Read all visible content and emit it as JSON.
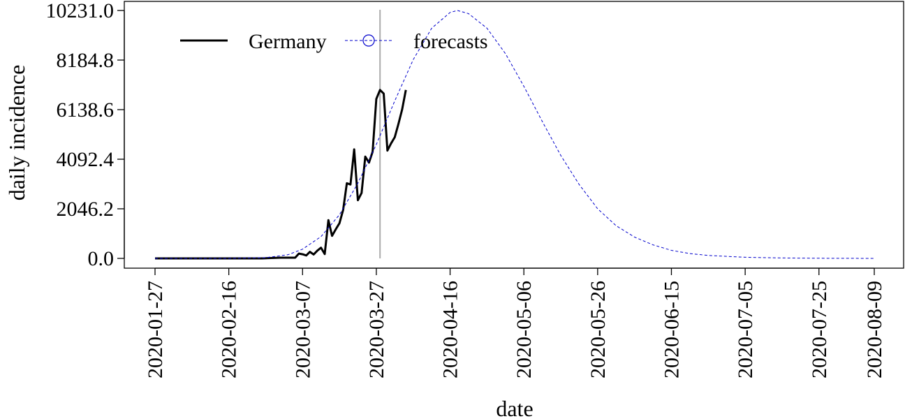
{
  "chart_data": {
    "type": "line",
    "xlabel": "date",
    "ylabel": "daily incidence",
    "x_ticks": [
      "2020-01-27",
      "2020-02-16",
      "2020-03-07",
      "2020-03-27",
      "2020-04-16",
      "2020-05-06",
      "2020-05-26",
      "2020-06-15",
      "2020-07-05",
      "2020-07-25",
      "2020-08-09"
    ],
    "y_ticks": [
      "0.0",
      "2046.2",
      "4092.4",
      "6138.6",
      "8184.8",
      "10231.0"
    ],
    "xlim": [
      "2020-01-27",
      "2020-08-09"
    ],
    "ylim": [
      0,
      10231.0
    ],
    "cutoff_date": "2020-03-28",
    "grid": false,
    "legend_position": "top-left",
    "series": [
      {
        "name": "Germany",
        "style": "solid",
        "color": "#000000",
        "points": [
          [
            "2020-01-27",
            0
          ],
          [
            "2020-02-10",
            0
          ],
          [
            "2020-02-25",
            0
          ],
          [
            "2020-03-01",
            30
          ],
          [
            "2020-03-03",
            30
          ],
          [
            "2020-03-05",
            30
          ],
          [
            "2020-03-06",
            200
          ],
          [
            "2020-03-07",
            170
          ],
          [
            "2020-03-08",
            120
          ],
          [
            "2020-03-09",
            270
          ],
          [
            "2020-03-10",
            160
          ],
          [
            "2020-03-11",
            320
          ],
          [
            "2020-03-12",
            440
          ],
          [
            "2020-03-13",
            180
          ],
          [
            "2020-03-14",
            1580
          ],
          [
            "2020-03-15",
            930
          ],
          [
            "2020-03-16",
            1200
          ],
          [
            "2020-03-17",
            1450
          ],
          [
            "2020-03-18",
            2000
          ],
          [
            "2020-03-19",
            3100
          ],
          [
            "2020-03-20",
            3050
          ],
          [
            "2020-03-21",
            4500
          ],
          [
            "2020-03-22",
            2400
          ],
          [
            "2020-03-23",
            2700
          ],
          [
            "2020-03-24",
            4200
          ],
          [
            "2020-03-25",
            3950
          ],
          [
            "2020-03-26",
            4400
          ],
          [
            "2020-03-27",
            6580
          ],
          [
            "2020-03-28",
            6950
          ],
          [
            "2020-03-29",
            6800
          ],
          [
            "2020-03-30",
            4450
          ],
          [
            "2020-03-31",
            4750
          ],
          [
            "2020-04-01",
            5000
          ],
          [
            "2020-04-02",
            5550
          ],
          [
            "2020-04-03",
            6150
          ],
          [
            "2020-04-04",
            6950
          ]
        ]
      },
      {
        "name": "forecasts",
        "style": "dashed",
        "color": "#0000cc",
        "points": [
          [
            "2020-01-27",
            0
          ],
          [
            "2020-02-16",
            0
          ],
          [
            "2020-02-26",
            30
          ],
          [
            "2020-03-03",
            150
          ],
          [
            "2020-03-07",
            380
          ],
          [
            "2020-03-12",
            900
          ],
          [
            "2020-03-17",
            1800
          ],
          [
            "2020-03-22",
            3100
          ],
          [
            "2020-03-27",
            4700
          ],
          [
            "2020-04-01",
            6500
          ],
          [
            "2020-04-06",
            8200
          ],
          [
            "2020-04-11",
            9500
          ],
          [
            "2020-04-16",
            10150
          ],
          [
            "2020-04-18",
            10231
          ],
          [
            "2020-04-21",
            10100
          ],
          [
            "2020-04-26",
            9500
          ],
          [
            "2020-05-01",
            8450
          ],
          [
            "2020-05-06",
            7100
          ],
          [
            "2020-05-11",
            5650
          ],
          [
            "2020-05-16",
            4250
          ],
          [
            "2020-05-21",
            3050
          ],
          [
            "2020-05-26",
            2050
          ],
          [
            "2020-05-31",
            1350
          ],
          [
            "2020-06-05",
            880
          ],
          [
            "2020-06-10",
            560
          ],
          [
            "2020-06-15",
            330
          ],
          [
            "2020-06-20",
            200
          ],
          [
            "2020-06-25",
            120
          ],
          [
            "2020-07-05",
            45
          ],
          [
            "2020-07-15",
            18
          ],
          [
            "2020-07-25",
            7
          ],
          [
            "2020-08-09",
            0
          ]
        ]
      }
    ]
  }
}
